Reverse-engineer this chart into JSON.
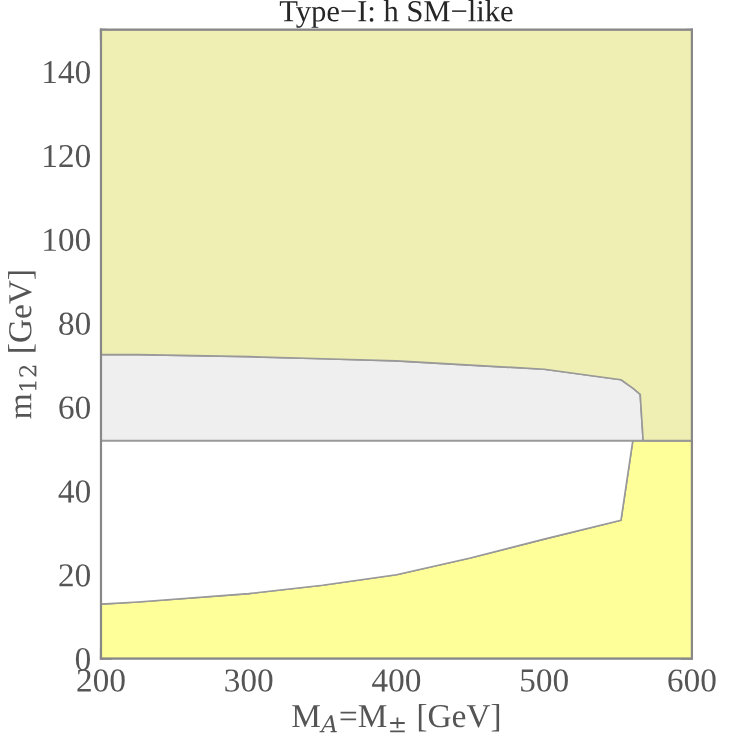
{
  "chart_data": {
    "type": "area",
    "title": "Type−I: h SM−like",
    "xlabel": "M$_{A}$=M$_{±}$ [GeV]",
    "ylabel": "m$_{12}$ [GeV]",
    "stacked": true,
    "x": [
      200,
      225,
      300,
      350,
      400,
      450,
      500,
      552,
      560,
      565,
      567,
      600
    ],
    "series": [
      {
        "color": "#ffff99",
        "values": [
          13,
          13.5,
          15.5,
          17.5,
          20,
          24,
          28.5,
          33,
          52,
          52,
          52,
          52
        ]
      },
      {
        "color": "#ffffff",
        "values": [
          39,
          38.5,
          36.5,
          34.5,
          32,
          28,
          23.5,
          19,
          0,
          0,
          0,
          0
        ]
      },
      {
        "color": "#efefef",
        "values": [
          20.5,
          20.5,
          20,
          19.5,
          19,
          18,
          17,
          14.5,
          12.5,
          11,
          0,
          0
        ]
      },
      {
        "color": "#efefb3",
        "values": [
          77.5,
          77.5,
          78,
          78.5,
          79,
          80,
          81,
          83.5,
          85.5,
          87,
          98,
          98
        ]
      }
    ],
    "xlim": [
      200,
      600
    ],
    "ylim": [
      0,
      150
    ],
    "xticks": [
      200,
      300,
      400,
      500,
      600
    ],
    "yticks": [
      0,
      20,
      40,
      60,
      80,
      100,
      120,
      140
    ]
  }
}
